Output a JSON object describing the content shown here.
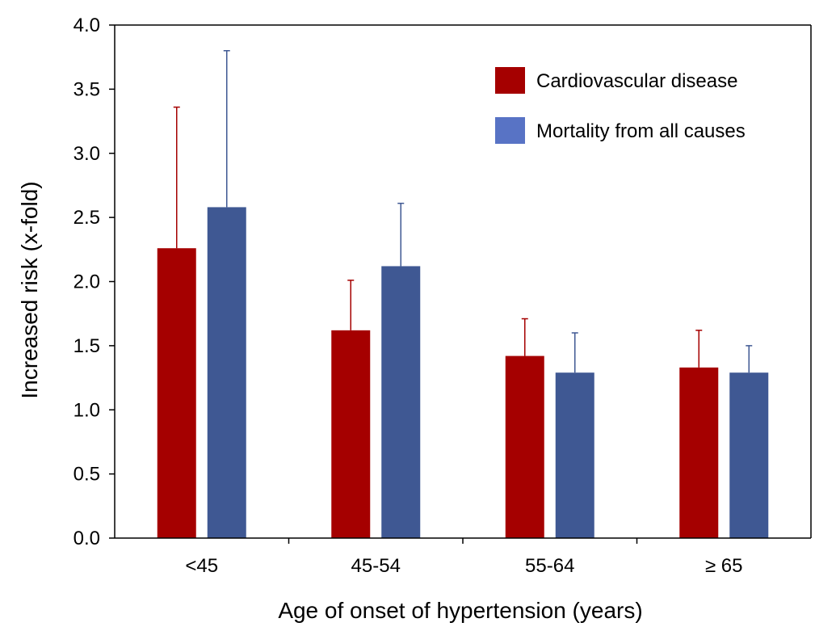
{
  "chart_data": {
    "type": "bar",
    "title": "",
    "xlabel": "Age of onset of hypertension (years)",
    "ylabel": "Increased risk (x-fold)",
    "ylim": [
      0,
      4
    ],
    "yticks": [
      "0.0",
      "0.5",
      "1.0",
      "1.5",
      "2.0",
      "2.5",
      "3.0",
      "3.5",
      "4.0"
    ],
    "categories": [
      "<45",
      "45-54",
      "55-64",
      "≥ 65"
    ],
    "series": [
      {
        "name": "Cardiovascular disease",
        "color": "#a50000",
        "values": [
          2.26,
          1.62,
          1.42,
          1.33
        ],
        "error_upper": [
          3.36,
          2.01,
          1.71,
          1.62
        ]
      },
      {
        "name": "Mortality from all causes",
        "color": "#3f5893",
        "legend_color": "#5873c5",
        "values": [
          2.58,
          2.12,
          1.29,
          1.29
        ],
        "error_upper": [
          3.8,
          2.61,
          1.6,
          1.5
        ]
      }
    ],
    "grid": false,
    "legend_position": "top-right"
  }
}
